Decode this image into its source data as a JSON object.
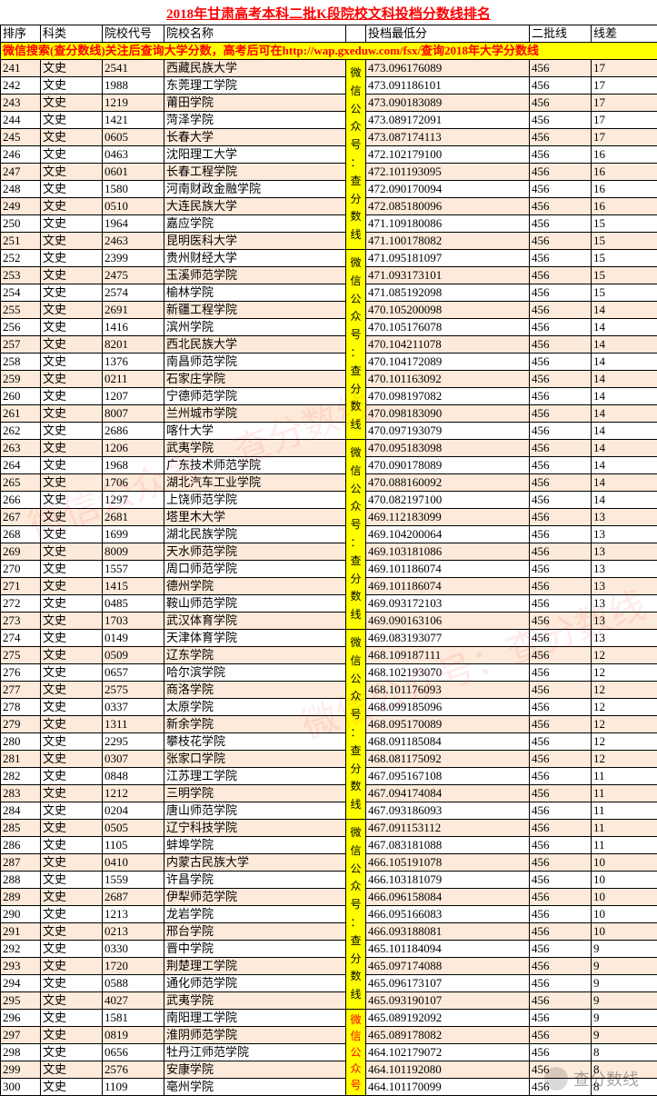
{
  "title": "2018年甘肃高考本科二批K段院校文科投档分数线排名",
  "promo_text": "微信搜索(查分数线)关注后查询大学分数，高考后可在http://wap.gxeduw.com/fsx/查询2018年大学分数线",
  "headers": {
    "rank": "排序",
    "category": "科类",
    "code": "院校代号",
    "name": "院校名称",
    "score": "投档最低分",
    "line2": "二批线",
    "diff": "线差"
  },
  "badge_text": "微信公众号：查分数线",
  "watermark_text": "微信公众号：查分数线",
  "footer_watermark": "查分数线",
  "colors": {
    "title": "#ff0000",
    "border": "#000000",
    "row_odd": "#fdeada",
    "row_even": "#ffffff",
    "highlight_bg": "#ffff00",
    "highlight_fg": "#ff0000"
  },
  "rows": [
    {
      "rank": "241",
      "cat": "文史",
      "code": "2541",
      "name": "西藏民族大学",
      "score": "473.096176089",
      "line2": "456",
      "diff": "17"
    },
    {
      "rank": "242",
      "cat": "文史",
      "code": "1988",
      "name": "东莞理工学院",
      "score": "473.091186101",
      "line2": "456",
      "diff": "17"
    },
    {
      "rank": "243",
      "cat": "文史",
      "code": "1219",
      "name": "莆田学院",
      "score": "473.090183089",
      "line2": "456",
      "diff": "17"
    },
    {
      "rank": "244",
      "cat": "文史",
      "code": "1421",
      "name": "菏泽学院",
      "score": "473.089172091",
      "line2": "456",
      "diff": "17"
    },
    {
      "rank": "245",
      "cat": "文史",
      "code": "0605",
      "name": "长春大学",
      "score": "473.087174113",
      "line2": "456",
      "diff": "17"
    },
    {
      "rank": "246",
      "cat": "文史",
      "code": "0463",
      "name": "沈阳理工大学",
      "score": "472.102179100",
      "line2": "456",
      "diff": "16"
    },
    {
      "rank": "247",
      "cat": "文史",
      "code": "0601",
      "name": "长春工程学院",
      "score": "472.101193095",
      "line2": "456",
      "diff": "16"
    },
    {
      "rank": "248",
      "cat": "文史",
      "code": "1580",
      "name": "河南财政金融学院",
      "score": "472.090170094",
      "line2": "456",
      "diff": "16"
    },
    {
      "rank": "249",
      "cat": "文史",
      "code": "0510",
      "name": "大连民族大学",
      "score": "472.085180096",
      "line2": "456",
      "diff": "16"
    },
    {
      "rank": "250",
      "cat": "文史",
      "code": "1964",
      "name": "嘉应学院",
      "score": "471.109180086",
      "line2": "456",
      "diff": "15"
    },
    {
      "rank": "251",
      "cat": "文史",
      "code": "2463",
      "name": "昆明医科大学",
      "score": "471.100178082",
      "line2": "456",
      "diff": "15"
    },
    {
      "rank": "252",
      "cat": "文史",
      "code": "2399",
      "name": "贵州财经大学",
      "score": "471.095181097",
      "line2": "456",
      "diff": "15"
    },
    {
      "rank": "253",
      "cat": "文史",
      "code": "2475",
      "name": "玉溪师范学院",
      "score": "471.093173101",
      "line2": "456",
      "diff": "15"
    },
    {
      "rank": "254",
      "cat": "文史",
      "code": "2574",
      "name": "榆林学院",
      "score": "471.085192098",
      "line2": "456",
      "diff": "15"
    },
    {
      "rank": "255",
      "cat": "文史",
      "code": "2691",
      "name": "新疆工程学院",
      "score": "470.105200098",
      "line2": "456",
      "diff": "14"
    },
    {
      "rank": "256",
      "cat": "文史",
      "code": "1416",
      "name": "滨州学院",
      "score": "470.105176078",
      "line2": "456",
      "diff": "14"
    },
    {
      "rank": "257",
      "cat": "文史",
      "code": "8201",
      "name": "西北民族大学",
      "score": "470.104211078",
      "line2": "456",
      "diff": "14"
    },
    {
      "rank": "258",
      "cat": "文史",
      "code": "1376",
      "name": "南昌师范学院",
      "score": "470.104172089",
      "line2": "456",
      "diff": "14"
    },
    {
      "rank": "259",
      "cat": "文史",
      "code": "0211",
      "name": "石家庄学院",
      "score": "470.101163092",
      "line2": "456",
      "diff": "14"
    },
    {
      "rank": "260",
      "cat": "文史",
      "code": "1207",
      "name": "宁德师范学院",
      "score": "470.098197082",
      "line2": "456",
      "diff": "14"
    },
    {
      "rank": "261",
      "cat": "文史",
      "code": "8007",
      "name": "兰州城市学院",
      "score": "470.098183090",
      "line2": "456",
      "diff": "14"
    },
    {
      "rank": "262",
      "cat": "文史",
      "code": "2686",
      "name": "喀什大学",
      "score": "470.097193079",
      "line2": "456",
      "diff": "14"
    },
    {
      "rank": "263",
      "cat": "文史",
      "code": "1206",
      "name": "武夷学院",
      "score": "470.095183098",
      "line2": "456",
      "diff": "14"
    },
    {
      "rank": "264",
      "cat": "文史",
      "code": "1968",
      "name": "广东技术师范学院",
      "score": "470.090178089",
      "line2": "456",
      "diff": "14"
    },
    {
      "rank": "265",
      "cat": "文史",
      "code": "1706",
      "name": "湖北汽车工业学院",
      "score": "470.088160092",
      "line2": "456",
      "diff": "14"
    },
    {
      "rank": "266",
      "cat": "文史",
      "code": "1297",
      "name": "上饶师范学院",
      "score": "470.082197100",
      "line2": "456",
      "diff": "14"
    },
    {
      "rank": "267",
      "cat": "文史",
      "code": "2681",
      "name": "塔里木大学",
      "score": "469.112183099",
      "line2": "456",
      "diff": "13"
    },
    {
      "rank": "268",
      "cat": "文史",
      "code": "1699",
      "name": "湖北民族学院",
      "score": "469.104200064",
      "line2": "456",
      "diff": "13"
    },
    {
      "rank": "269",
      "cat": "文史",
      "code": "8009",
      "name": "天水师范学院",
      "score": "469.103181086",
      "line2": "456",
      "diff": "13"
    },
    {
      "rank": "270",
      "cat": "文史",
      "code": "1557",
      "name": "周口师范学院",
      "score": "469.101186074",
      "line2": "456",
      "diff": "13"
    },
    {
      "rank": "271",
      "cat": "文史",
      "code": "1415",
      "name": "德州学院",
      "score": "469.101186074",
      "line2": "456",
      "diff": "13"
    },
    {
      "rank": "272",
      "cat": "文史",
      "code": "0485",
      "name": "鞍山师范学院",
      "score": "469.093172103",
      "line2": "456",
      "diff": "13"
    },
    {
      "rank": "273",
      "cat": "文史",
      "code": "1703",
      "name": "武汉体育学院",
      "score": "469.090163106",
      "line2": "456",
      "diff": "13"
    },
    {
      "rank": "274",
      "cat": "文史",
      "code": "0149",
      "name": "天津体育学院",
      "score": "469.083193077",
      "line2": "456",
      "diff": "13"
    },
    {
      "rank": "275",
      "cat": "文史",
      "code": "0509",
      "name": "辽东学院",
      "score": "468.109187111",
      "line2": "456",
      "diff": "12"
    },
    {
      "rank": "276",
      "cat": "文史",
      "code": "0657",
      "name": "哈尔滨学院",
      "score": "468.102193070",
      "line2": "456",
      "diff": "12"
    },
    {
      "rank": "277",
      "cat": "文史",
      "code": "2575",
      "name": "商洛学院",
      "score": "468.101176093",
      "line2": "456",
      "diff": "12"
    },
    {
      "rank": "278",
      "cat": "文史",
      "code": "0337",
      "name": "太原学院",
      "score": "468.099185096",
      "line2": "456",
      "diff": "12"
    },
    {
      "rank": "279",
      "cat": "文史",
      "code": "1311",
      "name": "新余学院",
      "score": "468.095170089",
      "line2": "456",
      "diff": "12"
    },
    {
      "rank": "280",
      "cat": "文史",
      "code": "2295",
      "name": "攀枝花学院",
      "score": "468.091185084",
      "line2": "456",
      "diff": "12"
    },
    {
      "rank": "281",
      "cat": "文史",
      "code": "0307",
      "name": "张家口学院",
      "score": "468.081175092",
      "line2": "456",
      "diff": "12"
    },
    {
      "rank": "282",
      "cat": "文史",
      "code": "0848",
      "name": "江苏理工学院",
      "score": "467.095167108",
      "line2": "456",
      "diff": "11"
    },
    {
      "rank": "283",
      "cat": "文史",
      "code": "1212",
      "name": "三明学院",
      "score": "467.094174084",
      "line2": "456",
      "diff": "11"
    },
    {
      "rank": "284",
      "cat": "文史",
      "code": "0204",
      "name": "唐山师范学院",
      "score": "467.093186093",
      "line2": "456",
      "diff": "11"
    },
    {
      "rank": "285",
      "cat": "文史",
      "code": "0505",
      "name": "辽宁科技学院",
      "score": "467.091153112",
      "line2": "456",
      "diff": "11"
    },
    {
      "rank": "286",
      "cat": "文史",
      "code": "1105",
      "name": "蚌埠学院",
      "score": "467.083181088",
      "line2": "456",
      "diff": "11"
    },
    {
      "rank": "287",
      "cat": "文史",
      "code": "0410",
      "name": "内蒙古民族大学",
      "score": "466.105191078",
      "line2": "456",
      "diff": "10"
    },
    {
      "rank": "288",
      "cat": "文史",
      "code": "1559",
      "name": "许昌学院",
      "score": "466.103181079",
      "line2": "456",
      "diff": "10"
    },
    {
      "rank": "289",
      "cat": "文史",
      "code": "2687",
      "name": "伊犁师范学院",
      "score": "466.096158084",
      "line2": "456",
      "diff": "10"
    },
    {
      "rank": "290",
      "cat": "文史",
      "code": "1213",
      "name": "龙岩学院",
      "score": "466.095166083",
      "line2": "456",
      "diff": "10"
    },
    {
      "rank": "291",
      "cat": "文史",
      "code": "0213",
      "name": "邢台学院",
      "score": "466.093188081",
      "line2": "456",
      "diff": "10"
    },
    {
      "rank": "292",
      "cat": "文史",
      "code": "0330",
      "name": "晋中学院",
      "score": "465.101184094",
      "line2": "456",
      "diff": "9"
    },
    {
      "rank": "293",
      "cat": "文史",
      "code": "1720",
      "name": "荆楚理工学院",
      "score": "465.097174088",
      "line2": "456",
      "diff": "9"
    },
    {
      "rank": "294",
      "cat": "文史",
      "code": "0588",
      "name": "通化师范学院",
      "score": "465.096173107",
      "line2": "456",
      "diff": "9"
    },
    {
      "rank": "295",
      "cat": "文史",
      "code": "4027",
      "name": "武夷学院",
      "score": "465.093190107",
      "line2": "456",
      "diff": "9"
    },
    {
      "rank": "296",
      "cat": "文史",
      "code": "1581",
      "name": "南阳理工学院",
      "score": "465.089192092",
      "line2": "456",
      "diff": "9"
    },
    {
      "rank": "297",
      "cat": "文史",
      "code": "0819",
      "name": "淮阴师范学院",
      "score": "465.089178082",
      "line2": "456",
      "diff": "9"
    },
    {
      "rank": "298",
      "cat": "文史",
      "code": "0656",
      "name": "牡丹江师范学院",
      "score": "464.102179072",
      "line2": "456",
      "diff": "8"
    },
    {
      "rank": "299",
      "cat": "文史",
      "code": "2576",
      "name": "安康学院",
      "score": "464.101192080",
      "line2": "456",
      "diff": "8"
    },
    {
      "rank": "300",
      "cat": "文史",
      "code": "1109",
      "name": "亳州学院",
      "score": "464.101170099",
      "line2": "456",
      "diff": "8"
    }
  ],
  "badge_groups": [
    {
      "start": 0,
      "span": 11,
      "hl": false
    },
    {
      "start": 11,
      "span": 11,
      "hl": false
    },
    {
      "start": 22,
      "span": 11,
      "hl": false
    },
    {
      "start": 33,
      "span": 11,
      "hl": false
    },
    {
      "start": 44,
      "span": 11,
      "hl": false
    },
    {
      "start": 55,
      "span": 5,
      "hl": true
    }
  ]
}
